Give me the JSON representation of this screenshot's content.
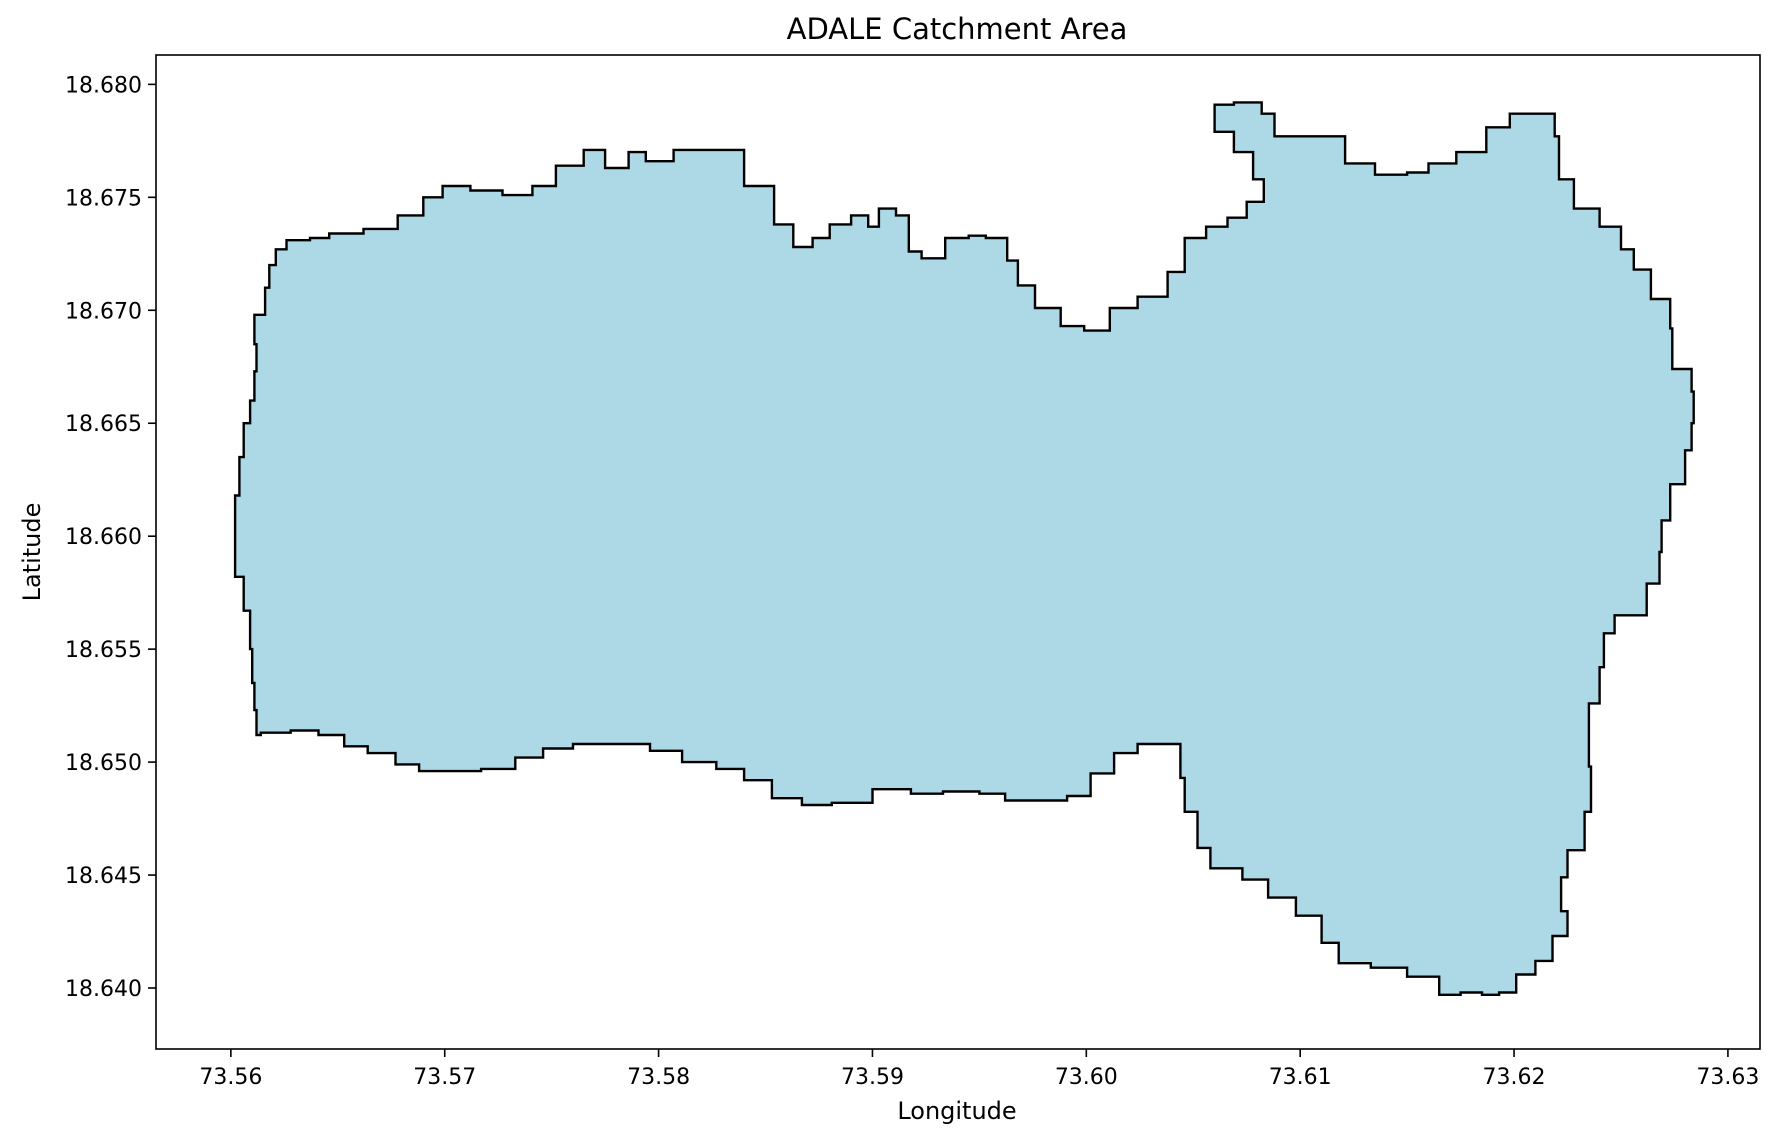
{
  "map": {
    "title": "ADALE Catchment Area",
    "xlabel": "Longitude",
    "ylabel": "Latitude",
    "xlim": [
      73.5565,
      73.6315
    ],
    "ylim": [
      18.6373,
      18.6813
    ],
    "x_ticks": [
      73.56,
      73.57,
      73.58,
      73.59,
      73.6,
      73.61,
      73.62,
      73.63
    ],
    "x_tick_labels": [
      "73.56",
      "73.57",
      "73.58",
      "73.59",
      "73.60",
      "73.61",
      "73.62",
      "73.63"
    ],
    "y_ticks": [
      18.64,
      18.645,
      18.65,
      18.655,
      18.66,
      18.665,
      18.67,
      18.675,
      18.68
    ],
    "y_tick_labels": [
      "18.640",
      "18.645",
      "18.650",
      "18.655",
      "18.660",
      "18.665",
      "18.670",
      "18.675",
      "18.680"
    ],
    "polygon_fill": "#add8e6",
    "polygon_edge": "#000000",
    "boundary": [
      [
        73.5621,
        18.6727
      ],
      [
        73.5626,
        18.6731
      ],
      [
        73.5637,
        18.6732
      ],
      [
        73.5646,
        18.6734
      ],
      [
        73.5662,
        18.6736
      ],
      [
        73.5678,
        18.6742
      ],
      [
        73.569,
        18.675
      ],
      [
        73.5699,
        18.6755
      ],
      [
        73.5712,
        18.6753
      ],
      [
        73.5727,
        18.6751
      ],
      [
        73.5741,
        18.6755
      ],
      [
        73.5752,
        18.6764
      ],
      [
        73.5765,
        18.6771
      ],
      [
        73.5775,
        18.6763
      ],
      [
        73.5786,
        18.677
      ],
      [
        73.5794,
        18.6766
      ],
      [
        73.5807,
        18.6771
      ],
      [
        73.5831,
        18.6771
      ],
      [
        73.584,
        18.6755
      ],
      [
        73.5854,
        18.6738
      ],
      [
        73.5863,
        18.6728
      ],
      [
        73.5872,
        18.6732
      ],
      [
        73.588,
        18.6738
      ],
      [
        73.589,
        18.6742
      ],
      [
        73.5898,
        18.6737
      ],
      [
        73.5903,
        18.6745
      ],
      [
        73.5911,
        18.6742
      ],
      [
        73.5917,
        18.6726
      ],
      [
        73.5923,
        18.6723
      ],
      [
        73.5934,
        18.6732
      ],
      [
        73.5945,
        18.6733
      ],
      [
        73.5953,
        18.6732
      ],
      [
        73.5963,
        18.6722
      ],
      [
        73.5968,
        18.6711
      ],
      [
        73.5976,
        18.6701
      ],
      [
        73.5988,
        18.6693
      ],
      [
        73.5999,
        18.6691
      ],
      [
        73.6011,
        18.6701
      ],
      [
        73.6024,
        18.6706
      ],
      [
        73.6038,
        18.6717
      ],
      [
        73.6046,
        18.6732
      ],
      [
        73.6056,
        18.6737
      ],
      [
        73.6066,
        18.6741
      ],
      [
        73.6075,
        18.6748
      ],
      [
        73.6083,
        18.6758
      ],
      [
        73.6078,
        18.677
      ],
      [
        73.6069,
        18.6779
      ],
      [
        73.606,
        18.6791
      ],
      [
        73.6069,
        18.6792
      ],
      [
        73.6082,
        18.6787
      ],
      [
        73.6088,
        18.6777
      ],
      [
        73.6108,
        18.6777
      ],
      [
        73.6121,
        18.6765
      ],
      [
        73.6135,
        18.676
      ],
      [
        73.615,
        18.6761
      ],
      [
        73.616,
        18.6765
      ],
      [
        73.6173,
        18.677
      ],
      [
        73.6187,
        18.6781
      ],
      [
        73.6198,
        18.6787
      ],
      [
        73.621,
        18.6787
      ],
      [
        73.6219,
        18.6777
      ],
      [
        73.6221,
        18.6758
      ],
      [
        73.6228,
        18.6745
      ],
      [
        73.624,
        18.6737
      ],
      [
        73.625,
        18.6727
      ],
      [
        73.6256,
        18.6718
      ],
      [
        73.6264,
        18.6705
      ],
      [
        73.6273,
        18.6692
      ],
      [
        73.6274,
        18.6674
      ],
      [
        73.6283,
        18.6664
      ],
      [
        73.6284,
        18.665
      ],
      [
        73.6283,
        18.6638
      ],
      [
        73.628,
        18.6623
      ],
      [
        73.6273,
        18.6607
      ],
      [
        73.6269,
        18.6593
      ],
      [
        73.6268,
        18.6579
      ],
      [
        73.6262,
        18.6565
      ],
      [
        73.6247,
        18.6557
      ],
      [
        73.6242,
        18.6542
      ],
      [
        73.624,
        18.6526
      ],
      [
        73.6235,
        18.6512
      ],
      [
        73.6235,
        18.6498
      ],
      [
        73.6236,
        18.6478
      ],
      [
        73.6233,
        18.6461
      ],
      [
        73.6225,
        18.6449
      ],
      [
        73.6222,
        18.6434
      ],
      [
        73.6225,
        18.6423
      ],
      [
        73.6218,
        18.6412
      ],
      [
        73.621,
        18.6406
      ],
      [
        73.6201,
        18.6398
      ],
      [
        73.6193,
        18.6397
      ],
      [
        73.6185,
        18.6398
      ],
      [
        73.6175,
        18.6397
      ],
      [
        73.6165,
        18.6405
      ],
      [
        73.615,
        18.6409
      ],
      [
        73.6133,
        18.6411
      ],
      [
        73.6118,
        18.642
      ],
      [
        73.611,
        18.6432
      ],
      [
        73.6098,
        18.644
      ],
      [
        73.6085,
        18.6448
      ],
      [
        73.6073,
        18.6453
      ],
      [
        73.6058,
        18.6462
      ],
      [
        73.6052,
        18.6478
      ],
      [
        73.6046,
        18.6493
      ],
      [
        73.6044,
        18.6508
      ],
      [
        73.6035,
        18.6508
      ],
      [
        73.6024,
        18.6504
      ],
      [
        73.6013,
        18.6495
      ],
      [
        73.6002,
        18.6485
      ],
      [
        73.5991,
        18.6483
      ],
      [
        73.5975,
        18.6483
      ],
      [
        73.5962,
        18.6486
      ],
      [
        73.595,
        18.6487
      ],
      [
        73.5933,
        18.6486
      ],
      [
        73.5918,
        18.6488
      ],
      [
        73.59,
        18.6482
      ],
      [
        73.5881,
        18.6481
      ],
      [
        73.5867,
        18.6484
      ],
      [
        73.5853,
        18.6492
      ],
      [
        73.584,
        18.6497
      ],
      [
        73.5827,
        18.65
      ],
      [
        73.5811,
        18.6505
      ],
      [
        73.5796,
        18.6508
      ],
      [
        73.5778,
        18.6508
      ],
      [
        73.576,
        18.6506
      ],
      [
        73.5746,
        18.6502
      ],
      [
        73.5733,
        18.6497
      ],
      [
        73.5717,
        18.6496
      ],
      [
        73.5705,
        18.6496
      ],
      [
        73.5688,
        18.6499
      ],
      [
        73.5677,
        18.6504
      ],
      [
        73.5664,
        18.6507
      ],
      [
        73.5653,
        18.6512
      ],
      [
        73.5641,
        18.6514
      ],
      [
        73.5628,
        18.6513
      ],
      [
        73.5614,
        18.6512
      ],
      [
        73.5612,
        18.6523
      ],
      [
        73.5611,
        18.6535
      ],
      [
        73.561,
        18.655
      ],
      [
        73.5609,
        18.6567
      ],
      [
        73.5606,
        18.6582
      ],
      [
        73.5602,
        18.6598
      ],
      [
        73.5602,
        18.6618
      ],
      [
        73.5604,
        18.6635
      ],
      [
        73.5606,
        18.665
      ],
      [
        73.5609,
        18.666
      ],
      [
        73.5611,
        18.6673
      ],
      [
        73.5612,
        18.6685
      ],
      [
        73.5611,
        18.6698
      ],
      [
        73.5616,
        18.671
      ],
      [
        73.5618,
        18.672
      ]
    ]
  }
}
